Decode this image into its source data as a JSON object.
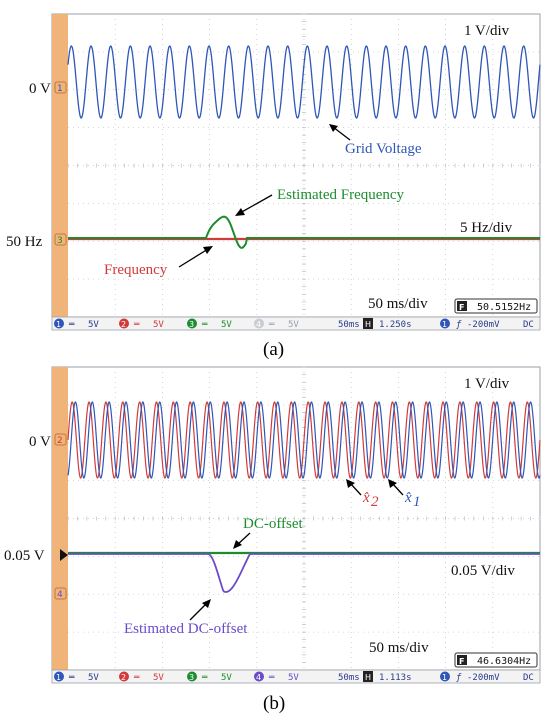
{
  "chart_data": [
    {
      "type": "line",
      "panel_label": "(a)",
      "x_scale_label": "50 ms/div",
      "frequency_readout": "50.5152Hz",
      "series": [
        {
          "name": "Grid Voltage",
          "color": "#2f56b8",
          "scale": "1 V/div",
          "baseline_label": "0 V",
          "amplitude_div": 1.0,
          "frequency_hz": 50
        },
        {
          "name": "Estimated Frequency",
          "color": "#1d8c2e",
          "scale": "5 Hz/div",
          "baseline_label": "50 Hz",
          "transient_peak_hz": 52.0,
          "transient_min_hz": 48.8
        },
        {
          "name": "Frequency",
          "color": "#d23a3a",
          "baseline_label": "50 Hz",
          "step_hz": 0.5
        }
      ],
      "annotations": [
        "Grid Voltage",
        "Estimated Frequency",
        "Frequency",
        "1 V/div",
        "5 Hz/div"
      ],
      "status_bar": {
        "channels": [
          {
            "label": "1",
            "value": "5V",
            "color": "#2f56b8"
          },
          {
            "label": "2",
            "value": "5V",
            "color": "#d23a3a"
          },
          {
            "label": "3",
            "value": "5V",
            "color": "#1d8c2e"
          },
          {
            "label": "4",
            "value": "5V",
            "color": "#9aa0b0"
          }
        ],
        "timebase": "50ms",
        "position": "1.250s",
        "trigger_channel": "1",
        "trigger_level": "-200mV",
        "coupling": "DC"
      }
    },
    {
      "type": "line",
      "panel_label": "(b)",
      "x_scale_label": "50 ms/div",
      "frequency_readout": "46.6304Hz",
      "series": [
        {
          "name": "x̂2",
          "color": "#d23a3a",
          "scale": "1 V/div",
          "baseline_label": "0 V",
          "amplitude_div": 1.05
        },
        {
          "name": "x̂1",
          "color": "#2f56b8",
          "scale": "1 V/div",
          "baseline_label": "0 V",
          "amplitude_div": 1.05
        },
        {
          "name": "DC-offset",
          "color": "#1d8c2e",
          "scale": "0.05 V/div",
          "baseline_label": "0.05 V"
        },
        {
          "name": "Estimated DC-offset",
          "color": "#6a4bc9",
          "scale": "0.05 V/div",
          "transient_min_v": -0.0
        }
      ],
      "annotations": [
        "x̂2",
        "x̂1",
        "DC-offset",
        "Estimated DC-offset",
        "1 V/div",
        "0.05 V/div"
      ],
      "status_bar": {
        "channels": [
          {
            "label": "1",
            "value": "5V",
            "color": "#2f56b8"
          },
          {
            "label": "2",
            "value": "5V",
            "color": "#d23a3a"
          },
          {
            "label": "3",
            "value": "5V",
            "color": "#1d8c2e"
          },
          {
            "label": "4",
            "value": "5V",
            "color": "#6a4bc9"
          }
        ],
        "timebase": "50ms",
        "position": "1.113s",
        "trigger_channel": "1",
        "trigger_level": "-200mV",
        "coupling": "DC"
      }
    }
  ],
  "labels": {
    "a": {
      "panel": "(a)",
      "v_div": "1 V/div",
      "zero_v": "0 V",
      "grid_voltage": "Grid Voltage",
      "est_freq": "Estimated Frequency",
      "hz_div": "5 Hz/div",
      "fifty_hz": "50 Hz",
      "frequency": "Frequency",
      "ms_div": "50 ms/div",
      "readout": "50.5152Hz",
      "timebase": "50ms",
      "position": "1.250s",
      "trig_level": "-200mV",
      "coupling": "DC",
      "ch1": "5V",
      "ch2": "5V",
      "ch3": "5V",
      "ch4": "5V"
    },
    "b": {
      "panel": "(b)",
      "v_div": "1 V/div",
      "zero_v": "0 V",
      "x2": "x̂",
      "x2_sub": "2",
      "x1": "x̂",
      "x1_sub": "1",
      "dc_offset": "DC-offset",
      "v005": "0.05 V",
      "v005_div": "0.05 V/div",
      "est_dc": "Estimated DC-offset",
      "ms_div": "50 ms/div",
      "readout": "46.6304Hz",
      "timebase": "50ms",
      "position": "1.113s",
      "trig_level": "-200mV",
      "coupling": "DC",
      "ch1": "5V",
      "ch2": "5V",
      "ch3": "5V",
      "ch4": "5V"
    },
    "ch_nums": [
      "1",
      "2",
      "3",
      "4"
    ],
    "trig_marker": "1",
    "f_icon": "F",
    "h_icon": "H"
  },
  "colors": {
    "orange_strip": "#f0b37a",
    "grid_dots": "#bfc3c9",
    "screen_bg": "#ffffff",
    "bar_bg": "#f3f3f3"
  }
}
